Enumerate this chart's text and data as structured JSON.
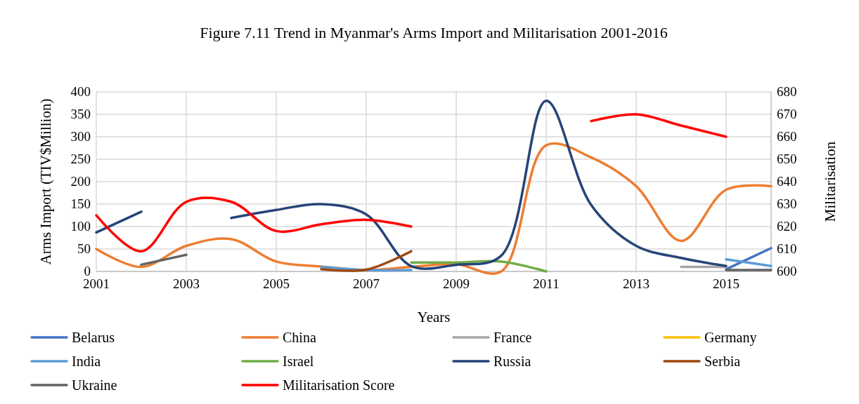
{
  "chart_data": {
    "type": "line",
    "title": "Figure 7.11 Trend in Myanmar's Arms Import and Militarisation 2001-2016",
    "xlabel": "Years",
    "ylabel": "Arms Import (TIV$Million)",
    "y2label": "Militarisation",
    "x": [
      2001,
      2002,
      2003,
      2004,
      2005,
      2006,
      2007,
      2008,
      2009,
      2010,
      2011,
      2012,
      2013,
      2014,
      2015,
      2016
    ],
    "xlim": [
      2001,
      2016
    ],
    "xticks": [
      2001,
      2003,
      2005,
      2007,
      2009,
      2011,
      2013,
      2015
    ],
    "ylim": [
      0,
      400
    ],
    "yticks": [
      0,
      50,
      100,
      150,
      200,
      250,
      300,
      350,
      400
    ],
    "y2lim": [
      600,
      680
    ],
    "y2ticks": [
      600,
      610,
      620,
      630,
      640,
      650,
      660,
      670,
      680
    ],
    "grid": true,
    "legend": "bottom",
    "series": [
      {
        "name": "Belarus",
        "color": "#4472c4",
        "values": [
          null,
          null,
          null,
          null,
          null,
          null,
          null,
          null,
          null,
          null,
          null,
          null,
          null,
          null,
          5,
          52
        ]
      },
      {
        "name": "China",
        "color": "#ed7d31",
        "values": [
          50,
          10,
          57,
          72,
          22,
          11,
          3,
          10,
          16,
          0,
          281,
          254,
          190,
          68,
          182,
          190
        ]
      },
      {
        "name": "France",
        "color": "#a5a5a5",
        "values": [
          null,
          null,
          null,
          null,
          null,
          null,
          null,
          null,
          null,
          null,
          null,
          null,
          null,
          10,
          10,
          null
        ]
      },
      {
        "name": "Germany",
        "color": "#ffc000",
        "values": [
          null,
          null,
          null,
          null,
          null,
          null,
          null,
          null,
          null,
          null,
          null,
          null,
          null,
          null,
          null,
          null
        ]
      },
      {
        "name": "India",
        "color": "#5b9bd5",
        "values": [
          null,
          null,
          null,
          null,
          null,
          10,
          3,
          3,
          null,
          null,
          null,
          null,
          null,
          null,
          27,
          12
        ]
      },
      {
        "name": "Israel",
        "color": "#70ad47",
        "values": [
          null,
          null,
          null,
          null,
          null,
          null,
          null,
          20,
          20,
          22,
          0,
          null,
          null,
          null,
          null,
          null
        ]
      },
      {
        "name": "Russia",
        "color": "#264478",
        "values": [
          87,
          133,
          null,
          119,
          137,
          150,
          127,
          12,
          15,
          35,
          380,
          148,
          57,
          30,
          12,
          null
        ]
      },
      {
        "name": "Serbia",
        "color": "#9e480e",
        "values": [
          null,
          null,
          null,
          null,
          null,
          5,
          4,
          45,
          null,
          null,
          null,
          null,
          null,
          null,
          null,
          null
        ]
      },
      {
        "name": "Ukraine",
        "color": "#636363",
        "values": [
          null,
          15,
          37,
          null,
          null,
          null,
          null,
          null,
          null,
          null,
          null,
          null,
          null,
          null,
          3,
          3
        ]
      },
      {
        "name": "Militarisation Score",
        "color": "#ff0000",
        "axis": "y2",
        "values": [
          625,
          609,
          631,
          631,
          618,
          621,
          623,
          620,
          null,
          null,
          null,
          667,
          670,
          665,
          660,
          null
        ]
      }
    ]
  }
}
